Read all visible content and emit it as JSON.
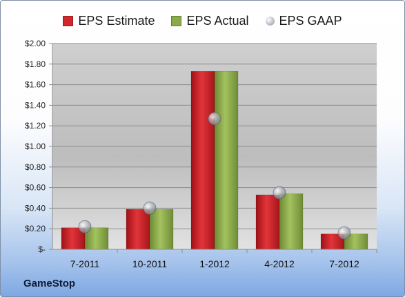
{
  "chart_data": {
    "type": "bar",
    "categories": [
      "7-2011",
      "10-2011",
      "1-2012",
      "4-2012",
      "7-2012"
    ],
    "series": [
      {
        "name": "EPS Estimate",
        "values": [
          0.21,
          0.39,
          1.73,
          0.53,
          0.15
        ],
        "color": "#d1262c"
      },
      {
        "name": "EPS Actual",
        "values": [
          0.21,
          0.39,
          1.73,
          0.54,
          0.15
        ],
        "color": "#8bab4a"
      }
    ],
    "gaap": {
      "name": "EPS GAAP",
      "values": [
        0.22,
        0.4,
        1.27,
        0.55,
        0.16
      ],
      "color": "#a9afb8"
    },
    "ylim": [
      0,
      2.0
    ],
    "yticks": [
      0,
      0.2,
      0.4,
      0.6,
      0.8,
      1.0,
      1.2,
      1.4,
      1.6,
      1.8,
      2.0
    ],
    "ytick_labels": [
      "$-",
      "$0.20",
      "$0.40",
      "$0.60",
      "$0.80",
      "$1.00",
      "$1.20",
      "$1.40",
      "$1.60",
      "$1.80",
      "$2.00"
    ],
    "grid": true,
    "legend_position": "top",
    "title": "",
    "xlabel": "",
    "ylabel": ""
  },
  "company_label": "GameStop"
}
